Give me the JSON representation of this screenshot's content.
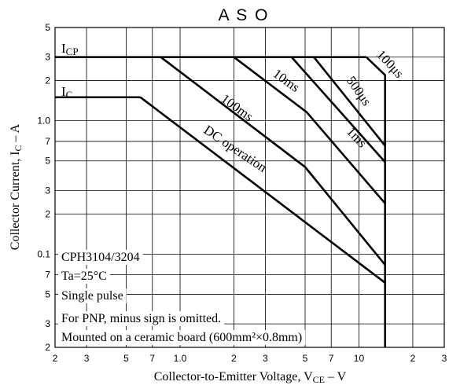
{
  "chart_data": {
    "type": "line",
    "title": "A S O",
    "xlabel": {
      "text": "Collector-to-Emitter Voltage, V",
      "sub": "CE",
      "tail": " – V"
    },
    "ylabel": {
      "text": "Collector Current, I",
      "sub": "C",
      "tail": " – A"
    },
    "log_x": true,
    "log_y": true,
    "grid": true,
    "color": "#000000",
    "xlim": [
      0.2,
      30
    ],
    "xticks": [
      {
        "value": 0.2,
        "label": "2"
      },
      {
        "value": 0.3,
        "label": "3"
      },
      {
        "value": 0.5,
        "label": "5"
      },
      {
        "value": 0.7,
        "label": "7"
      },
      {
        "value": 1,
        "label": "1.0"
      },
      2,
      3,
      5,
      7,
      10,
      {
        "value": 20,
        "label": "2"
      },
      {
        "value": 30,
        "label": "3"
      }
    ],
    "ylim": [
      0.02,
      5
    ],
    "yticks": [
      5,
      3,
      2,
      {
        "value": 1,
        "label": "1.0"
      },
      {
        "value": 0.7,
        "label": "7"
      },
      {
        "value": 0.5,
        "label": "5"
      },
      {
        "value": 0.3,
        "label": "3"
      },
      {
        "value": 0.2,
        "label": "2"
      },
      0.1,
      {
        "value": 0.07,
        "label": "7"
      },
      {
        "value": 0.05,
        "label": "5"
      },
      {
        "value": 0.03,
        "label": "3"
      },
      {
        "value": 0.02,
        "label": "2"
      }
    ],
    "series": [
      {
        "name": "I",
        "sub": "CP",
        "x": [
          0.2,
          11
        ],
        "values": [
          3,
          3
        ]
      },
      {
        "name": "100μs",
        "x": [
          11,
          14,
          14
        ],
        "values": [
          3,
          2.2,
          0.02
        ]
      },
      {
        "name": "500μs",
        "x": [
          5.6,
          14
        ],
        "values": [
          3,
          0.65
        ]
      },
      {
        "name": "1ms",
        "x": [
          4.2,
          14
        ],
        "values": [
          3,
          0.49
        ]
      },
      {
        "name": "10ms",
        "x": [
          2,
          5.1,
          14
        ],
        "values": [
          3,
          1.16,
          0.24
        ]
      },
      {
        "name": "100ms",
        "x": [
          0.78,
          5,
          14
        ],
        "values": [
          3,
          0.45,
          0.083
        ]
      },
      {
        "name": "I",
        "sub": "C",
        "x": [
          0.2,
          0.6
        ],
        "values": [
          1.5,
          1.5
        ]
      },
      {
        "name": "DC operation",
        "x": [
          0.6,
          14
        ],
        "values": [
          1.5,
          0.061
        ]
      }
    ],
    "notes": [
      "CPH3104/3204",
      "Ta=25°C",
      "Single pulse",
      "For PNP, minus sign is omitted.",
      "Mounted on a ceramic board (600mm²×0.8mm)"
    ]
  }
}
